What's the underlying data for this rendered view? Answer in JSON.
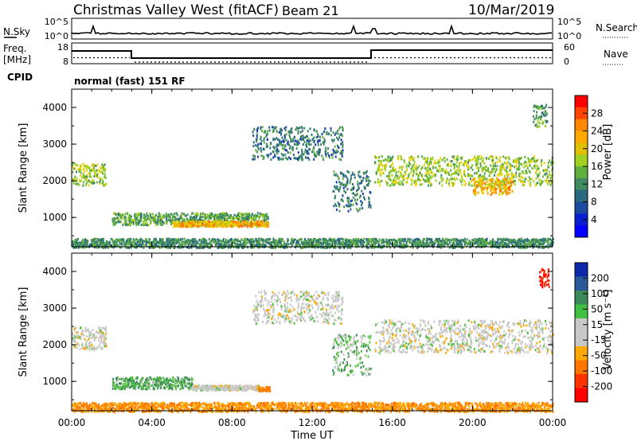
{
  "header": {
    "title": "Christmas Valley West (fitACF)",
    "beam": "Beam 21",
    "date": "10/Mar/2019"
  },
  "strip_panels": {
    "nsky": {
      "left_label": "N.Sky",
      "right_label": "N.Search",
      "left_ticks": [
        "10^5",
        "10^0"
      ],
      "right_ticks": [
        "10^5",
        "10^0"
      ]
    },
    "freq": {
      "left_label_1": "Freq.",
      "left_label_2": "[MHz]",
      "right_label": "Nave",
      "left_ticks": [
        "18",
        "8"
      ],
      "right_ticks": [
        "60",
        "0"
      ]
    },
    "cpid": {
      "label": "CPID",
      "text": "normal (fast) 151 RF"
    }
  },
  "xaxis": {
    "label": "Time UT",
    "ticks": [
      "00:00",
      "04:00",
      "08:00",
      "12:00",
      "16:00",
      "20:00",
      "00:00"
    ]
  },
  "power_colorbar": {
    "label": "Power [dB]",
    "ticks": [
      "28",
      "24",
      "20",
      "16",
      "12",
      "8",
      "4"
    ],
    "colors": [
      "#ff0000",
      "#ff4400",
      "#ff8800",
      "#ffaa00",
      "#e0c000",
      "#a0d020",
      "#60b040",
      "#408a60",
      "#2a6a80",
      "#1a4aa0",
      "#0a20d0",
      "#0000ff"
    ]
  },
  "velocity_colorbar": {
    "label": "Velocity [m s⁻¹]",
    "ticks": [
      "200",
      "100",
      "50",
      "15",
      "-15",
      "-50",
      "-100",
      "-200"
    ],
    "colors": [
      "#0a2aaa",
      "#2a5a9a",
      "#3a8a5a",
      "#40c040",
      "#c8c8c8",
      "#c8c8c8",
      "#ffaa00",
      "#ff7700",
      "#ff3300",
      "#ff0000"
    ]
  },
  "chart_data": [
    {
      "type": "heatmap",
      "title": "Power",
      "ylabel": "Slant Range [km]",
      "xlabel": "Time UT",
      "xlim": [
        0,
        24
      ],
      "ylim": [
        200,
        4500
      ],
      "yticks": [
        "1000",
        "2000",
        "3000",
        "4000"
      ],
      "colorbar_label": "Power [dB]",
      "colorbar_range": [
        0,
        30
      ],
      "regions": [
        {
          "t0": 0.0,
          "t1": 1.7,
          "r0": 1900,
          "r1": 2500,
          "level": 16
        },
        {
          "t0": 2.0,
          "t1": 9.8,
          "r0": 820,
          "r1": 1150,
          "level": 12
        },
        {
          "t0": 5.0,
          "t1": 9.8,
          "r0": 780,
          "r1": 920,
          "level": 22
        },
        {
          "t0": 9.0,
          "t1": 13.5,
          "r0": 2600,
          "r1": 3500,
          "level": 8
        },
        {
          "t0": 13.0,
          "t1": 14.9,
          "r0": 1200,
          "r1": 2300,
          "level": 8
        },
        {
          "t0": 15.1,
          "t1": 24.0,
          "r0": 1900,
          "r1": 2700,
          "level": 16
        },
        {
          "t0": 20.0,
          "t1": 22.0,
          "r0": 1650,
          "r1": 2100,
          "level": 22
        },
        {
          "t0": 23.0,
          "t1": 23.7,
          "r0": 3500,
          "r1": 4100,
          "level": 12
        },
        {
          "t0": 0.0,
          "t1": 24.0,
          "r0": 200,
          "r1": 450,
          "level": 10
        }
      ]
    },
    {
      "type": "heatmap",
      "title": "Velocity",
      "ylabel": "Slant Range [km]",
      "xlabel": "Time UT",
      "xlim": [
        0,
        24
      ],
      "ylim": [
        200,
        4500
      ],
      "yticks": [
        "1000",
        "2000",
        "3000",
        "4000"
      ],
      "colorbar_label": "Velocity [m s⁻¹]",
      "colorbar_range": [
        -200,
        200
      ],
      "regions": [
        {
          "t0": 0.0,
          "t1": 1.7,
          "r0": 1900,
          "r1": 2500,
          "level": 0
        },
        {
          "t0": 2.0,
          "t1": 6.0,
          "r0": 820,
          "r1": 1150,
          "level": 30
        },
        {
          "t0": 6.0,
          "t1": 9.3,
          "r0": 780,
          "r1": 920,
          "level": 0
        },
        {
          "t0": 9.3,
          "t1": 9.9,
          "r0": 760,
          "r1": 880,
          "level": -60
        },
        {
          "t0": 9.0,
          "t1": 13.5,
          "r0": 2600,
          "r1": 3500,
          "level": 0
        },
        {
          "t0": 13.0,
          "t1": 14.9,
          "r0": 1200,
          "r1": 2300,
          "level": 20
        },
        {
          "t0": 15.1,
          "t1": 24.0,
          "r0": 1800,
          "r1": 2700,
          "level": 0
        },
        {
          "t0": 23.3,
          "t1": 23.8,
          "r0": 3600,
          "r1": 4100,
          "level": -150
        },
        {
          "t0": 0.0,
          "t1": 24.0,
          "r0": 200,
          "r1": 450,
          "level": -50
        }
      ]
    }
  ]
}
